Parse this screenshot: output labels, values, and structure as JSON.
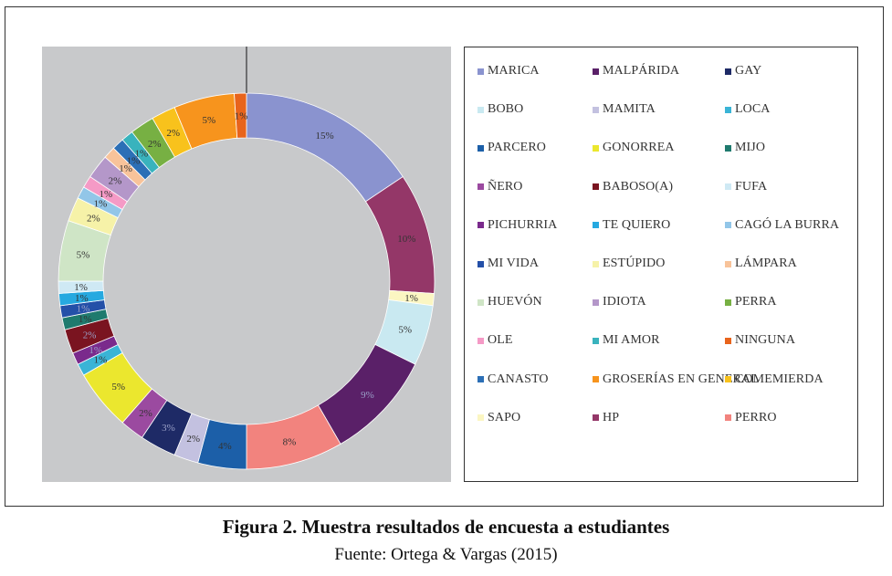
{
  "chart_data": {
    "type": "donut",
    "series": [
      {
        "name": "MARICA",
        "value": 15,
        "label": "15%",
        "color": "#8a93cf"
      },
      {
        "name": "HP",
        "value": 10,
        "label": "10%",
        "color": "#943768"
      },
      {
        "name": "SAPO",
        "value": 1,
        "label": "1%",
        "color": "#fbf6c2"
      },
      {
        "name": "BOBO",
        "value": 5,
        "label": "5%",
        "color": "#c9e9f1"
      },
      {
        "name": "MALPÁRIDA",
        "value": 9,
        "label": "9%",
        "color": "#5a2068"
      },
      {
        "name": "PERRO",
        "value": 8,
        "label": "8%",
        "color": "#f2837e"
      },
      {
        "name": "PARCERO",
        "value": 4,
        "label": "4%",
        "color": "#1c5fa8"
      },
      {
        "name": "MAMITA",
        "value": 2,
        "label": "2%",
        "color": "#c3c1e0"
      },
      {
        "name": "GAY",
        "value": 3,
        "label": "3%",
        "color": "#1e2a66"
      },
      {
        "name": "ÑERO",
        "value": 2,
        "label": "2%",
        "color": "#9b4aa0"
      },
      {
        "name": "GONORREA",
        "value": 5,
        "label": "5%",
        "color": "#ebe72e"
      },
      {
        "name": "LOCA",
        "value": 1,
        "label": "1%",
        "color": "#3ab4d6"
      },
      {
        "name": "PICHURRIA",
        "value": 1,
        "label": "1%",
        "color": "#7a2a8c"
      },
      {
        "name": "BABOSO(A)",
        "value": 2,
        "label": "2%",
        "color": "#7a1420"
      },
      {
        "name": "MIJO",
        "value": 1,
        "label": "1%",
        "color": "#1f7a6e"
      },
      {
        "name": "MI VIDA",
        "value": 1,
        "label": "1%",
        "color": "#2450a8"
      },
      {
        "name": "TE QUIERO",
        "value": 1,
        "label": "1%",
        "color": "#26a9e0"
      },
      {
        "name": "FUFA",
        "value": 1,
        "label": "1%",
        "color": "#cfe9f4"
      },
      {
        "name": "HUEVÓN",
        "value": 5,
        "label": "5%",
        "color": "#cfe5c6"
      },
      {
        "name": "ESTÚPIDO",
        "value": 2,
        "label": "2%",
        "color": "#f6f2a8"
      },
      {
        "name": "CAGÓ LA BURRA",
        "value": 1,
        "label": "1%",
        "color": "#92c6e8"
      },
      {
        "name": "OLE",
        "value": 1,
        "label": "1%",
        "color": "#f59ac6"
      },
      {
        "name": "IDIOTA",
        "value": 2,
        "label": "2%",
        "color": "#b497c9"
      },
      {
        "name": "LÁMPARA",
        "value": 1,
        "label": "1%",
        "color": "#f8c39a"
      },
      {
        "name": "CANASTO",
        "value": 1,
        "label": "1%",
        "color": "#2c6fb6"
      },
      {
        "name": "MI AMOR",
        "value": 1,
        "label": "1%",
        "color": "#39b3bd"
      },
      {
        "name": "PERRA",
        "value": 2,
        "label": "2%",
        "color": "#77b043"
      },
      {
        "name": "COMEMIERDA",
        "value": 2,
        "label": "2%",
        "color": "#f8c21c"
      },
      {
        "name": "GROSERÍAS EN GENERAL",
        "value": 5,
        "label": "5%",
        "color": "#f7941d"
      },
      {
        "name": "NINGUNA",
        "value": 1,
        "label": "1%",
        "color": "#e8641c"
      }
    ],
    "legend_position": "right",
    "legend": [
      {
        "name": "MARICA",
        "color": "#8a93cf"
      },
      {
        "name": "MALPÁRIDA",
        "color": "#5a2068"
      },
      {
        "name": "GAY",
        "color": "#1e2a66"
      },
      {
        "name": "BOBO",
        "color": "#c9e9f1"
      },
      {
        "name": "MAMITA",
        "color": "#c3c1e0"
      },
      {
        "name": "LOCA",
        "color": "#3ab4d6"
      },
      {
        "name": "PARCERO",
        "color": "#1c5fa8"
      },
      {
        "name": "GONORREA",
        "color": "#ebe72e"
      },
      {
        "name": "MIJO",
        "color": "#1f7a6e"
      },
      {
        "name": "ÑERO",
        "color": "#9b4aa0"
      },
      {
        "name": "BABOSO(A)",
        "color": "#7a1420"
      },
      {
        "name": "FUFA",
        "color": "#cfe9f4"
      },
      {
        "name": "PICHURRIA",
        "color": "#7a2a8c"
      },
      {
        "name": "TE QUIERO",
        "color": "#26a9e0"
      },
      {
        "name": "CAGÓ LA BURRA",
        "color": "#92c6e8"
      },
      {
        "name": "MI VIDA",
        "color": "#2450a8"
      },
      {
        "name": "ESTÚPIDO",
        "color": "#f6f2a8"
      },
      {
        "name": "LÁMPARA",
        "color": "#f8c39a"
      },
      {
        "name": "HUEVÓN",
        "color": "#cfe5c6"
      },
      {
        "name": "IDIOTA",
        "color": "#b497c9"
      },
      {
        "name": "PERRA",
        "color": "#77b043"
      },
      {
        "name": "OLE",
        "color": "#f59ac6"
      },
      {
        "name": "MI AMOR",
        "color": "#39b3bd"
      },
      {
        "name": "NINGUNA",
        "color": "#e8641c"
      },
      {
        "name": "CANASTO",
        "color": "#2c6fb6"
      },
      {
        "name": "GROSERÍAS EN GENERAL",
        "color": "#f7941d"
      },
      {
        "name": "COMEMIERDA",
        "color": "#f8c21c"
      },
      {
        "name": "SAPO",
        "color": "#fbf6c2"
      },
      {
        "name": "HP",
        "color": "#943768"
      },
      {
        "name": "PERRO",
        "color": "#f2837e"
      }
    ]
  },
  "caption": {
    "title": "Figura 2. Muestra resultados de encuesta a estudiantes",
    "source": "Fuente: Ortega & Vargas (2015)"
  }
}
